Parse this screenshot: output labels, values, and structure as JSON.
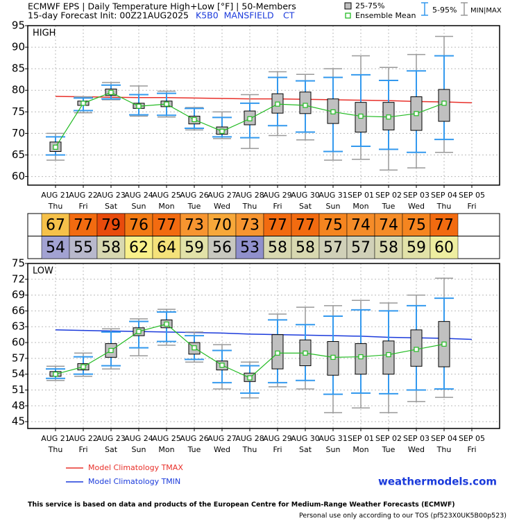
{
  "header": {
    "title": "ECMWF EPS | Daily Temperature High+Low [°F] | 50-Members",
    "subtitle": "15-day Forecast Init: 00Z21AUG2025",
    "station": "K5B0  MANSFIELD",
    "state": "CT"
  },
  "legend": {
    "box": "25-75%",
    "mean": "Ensemble Mean",
    "whisker": "5-95%",
    "minmax": "MIN|MAX"
  },
  "chart_data": [
    {
      "type": "box",
      "label": "HIGH",
      "categories": [
        "AUG 21",
        "AUG 22",
        "AUG 23",
        "AUG 24",
        "AUG 25",
        "AUG 26",
        "AUG 27",
        "AUG 28",
        "AUG 29",
        "AUG 30",
        "AUG 31",
        "SEP 01",
        "SEP 02",
        "SEP 03",
        "SEP 04",
        "SEP 05"
      ],
      "weekdays": [
        "Thu",
        "Fri",
        "Sat",
        "Sun",
        "Mon",
        "Tue",
        "Wed",
        "Thu",
        "Fri",
        "Sat",
        "Sun",
        "Mon",
        "Tue",
        "Wed",
        "Thu",
        "Fri"
      ],
      "min": [
        63.8,
        74.8,
        77.8,
        74,
        73.8,
        70.8,
        68.8,
        66.5,
        69.5,
        68.5,
        63.8,
        64,
        61.5,
        62,
        65.6,
        null
      ],
      "p5": [
        65,
        75.3,
        78,
        74.3,
        74.2,
        71.2,
        69.2,
        69,
        71.8,
        70.3,
        65.8,
        67,
        66.3,
        65.6,
        68.6,
        null
      ],
      "p25": [
        65.8,
        76.5,
        78.8,
        75.8,
        76.2,
        72.2,
        69.8,
        72,
        74.7,
        74.6,
        72.3,
        70.3,
        70.8,
        70.7,
        72.8,
        null
      ],
      "mean": [
        66.8,
        77,
        79.5,
        76.3,
        76.8,
        73.2,
        70.5,
        73.4,
        76.8,
        76.5,
        75,
        74,
        73.8,
        74.6,
        77,
        null
      ],
      "p75": [
        68,
        77.5,
        80.3,
        77,
        77.5,
        74,
        71.5,
        75.2,
        79.2,
        79.6,
        78,
        77.2,
        77.2,
        78.5,
        80.2,
        null
      ],
      "p95": [
        69.2,
        78.2,
        81.2,
        79,
        79.3,
        75.8,
        73.7,
        77,
        83,
        82.2,
        83,
        83.6,
        82.3,
        84.5,
        88,
        null
      ],
      "max": [
        70,
        78.5,
        81.8,
        81,
        79.8,
        76,
        75,
        79,
        84.3,
        83.7,
        85,
        88,
        85.3,
        88.3,
        92.5,
        null
      ],
      "series": [
        {
          "name": "Model Climatology TMAX",
          "color": "#e8302a",
          "values": [
            78.6,
            78.5,
            78.4,
            78.3,
            78.3,
            78.2,
            78.1,
            78.0,
            78.0,
            77.9,
            77.8,
            77.7,
            77.6,
            77.4,
            77.3,
            77.1
          ]
        }
      ],
      "ylim": [
        58,
        95
      ],
      "yticks": [
        60,
        65,
        70,
        75,
        80,
        85,
        90,
        95
      ],
      "grid": true
    },
    {
      "type": "table",
      "rows": [
        {
          "values": [
            67,
            77,
            79,
            76,
            77,
            73,
            70,
            73,
            77,
            77,
            75,
            74,
            74,
            75,
            77
          ],
          "colors": [
            "#f6c14a",
            "#f26b10",
            "#e84b0c",
            "#f27a14",
            "#f26b10",
            "#f79530",
            "#f7a83a",
            "#f79530",
            "#f26b10",
            "#f26b10",
            "#f58520",
            "#f58c28",
            "#f58c28",
            "#f58520",
            "#f26b10"
          ]
        },
        {
          "values": [
            54,
            55,
            58,
            62,
            64,
            59,
            56,
            53,
            58,
            58,
            57,
            57,
            58,
            59,
            60
          ],
          "colors": [
            "#a2a2d2",
            "#b8b8cc",
            "#d8d8b0",
            "#f9f08a",
            "#f5e27a",
            "#e2e2a8",
            "#c8c8c0",
            "#9090cc",
            "#d8d8b0",
            "#d8d8b0",
            "#d0d0b8",
            "#d0d0b8",
            "#d8d8b0",
            "#e2e2a8",
            "#eeeea0"
          ]
        }
      ]
    },
    {
      "type": "box",
      "label": "LOW",
      "categories": [
        "AUG 21",
        "AUG 22",
        "AUG 23",
        "AUG 24",
        "AUG 25",
        "AUG 26",
        "AUG 27",
        "AUG 28",
        "AUG 29",
        "AUG 30",
        "AUG 31",
        "SEP 01",
        "SEP 02",
        "SEP 03",
        "SEP 04",
        "SEP 05"
      ],
      "weekdays": [
        "Thu",
        "Fri",
        "Sat",
        "Sun",
        "Mon",
        "Tue",
        "Wed",
        "Thu",
        "Fri",
        "Sat",
        "Sun",
        "Mon",
        "Tue",
        "Wed",
        "Thu",
        "Fri"
      ],
      "min": [
        52.8,
        53.6,
        55,
        57.5,
        59.5,
        56.3,
        51.2,
        49.5,
        51.6,
        51.2,
        46.7,
        47.6,
        46.7,
        48.8,
        49.6,
        null
      ],
      "p5": [
        53.2,
        54,
        55.6,
        59,
        60.2,
        56.8,
        52.4,
        50.4,
        52.4,
        52.8,
        50.2,
        50.4,
        50.3,
        51,
        51.2,
        null
      ],
      "p25": [
        53.6,
        54.8,
        57.2,
        61.3,
        62.8,
        57.8,
        54.8,
        52.6,
        55,
        55.6,
        53.8,
        54,
        54,
        55.5,
        55.4,
        null
      ],
      "mean": [
        54,
        55.4,
        58.5,
        62.1,
        63.5,
        59,
        55.7,
        53.3,
        58,
        58,
        57.2,
        57.3,
        57.7,
        58.7,
        59.7,
        null
      ],
      "p75": [
        54.5,
        56,
        59.8,
        62.8,
        64.3,
        60,
        56.5,
        54.2,
        61.5,
        60.5,
        60.2,
        59.8,
        60.3,
        62.4,
        64,
        null
      ],
      "p95": [
        55,
        57.3,
        62,
        64,
        65.8,
        61.3,
        58.5,
        55.6,
        64.3,
        63.4,
        65,
        66.2,
        66,
        67,
        68.4,
        null
      ],
      "max": [
        55.5,
        58,
        62.6,
        64.5,
        66.3,
        62,
        59.6,
        56.3,
        65.4,
        66.7,
        67,
        68,
        67.5,
        69,
        72.2,
        null
      ],
      "series": [
        {
          "name": "Model Climatology TMIN",
          "color": "#1a3adb",
          "values": [
            62.4,
            62.3,
            62.2,
            62.1,
            62.0,
            61.9,
            61.8,
            61.6,
            61.5,
            61.4,
            61.3,
            61.2,
            61.0,
            60.9,
            60.8,
            60.6
          ]
        }
      ],
      "ylim": [
        43.7,
        75
      ],
      "yticks": [
        45,
        48,
        51,
        54,
        57,
        60,
        63,
        66,
        69,
        72,
        75
      ],
      "grid": true
    }
  ],
  "footer": {
    "credit": "weathermodels.com",
    "note": "This service is based on data and products of the European Centre for Medium-Range Weather Forecasts (ECMWF)",
    "tos": "Personal use only according to our TOS (pf523X0UK5B00p523)"
  }
}
